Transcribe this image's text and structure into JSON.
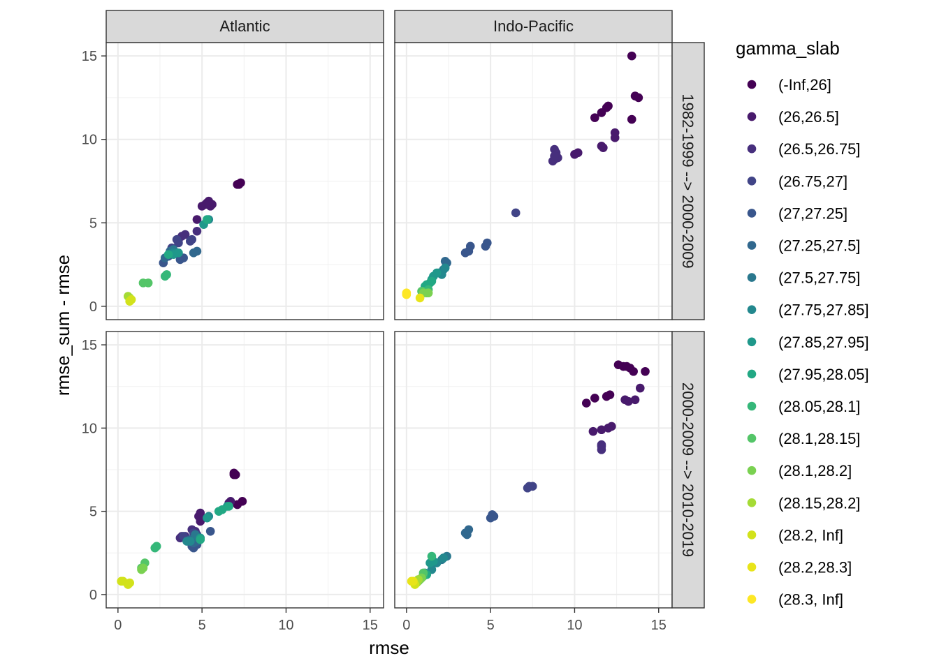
{
  "chart_data": {
    "type": "scatter",
    "xlabel": "rmse",
    "ylabel": "rmse_sum - rmse",
    "xlim": [
      -0.7,
      15.8
    ],
    "ylim": [
      -0.8,
      15.8
    ],
    "x_ticks": [
      "0",
      "5",
      "10",
      "15"
    ],
    "y_ticks": [
      "0",
      "5",
      "10",
      "15"
    ],
    "grid": true,
    "legend_placement": "right",
    "column_facets": [
      "Atlantic",
      "Indo-Pacific"
    ],
    "row_facets": [
      "1982-1999 --> 2000-2009",
      "2000-2009 --> 2010-2019"
    ],
    "legend": {
      "title": "gamma_slab",
      "entries": [
        {
          "label": "(-Inf,26]",
          "color": "#440154"
        },
        {
          "label": "(26,26.5]",
          "color": "#481a6c"
        },
        {
          "label": "(26.5,26.75]",
          "color": "#472f7d"
        },
        {
          "label": "(26.75,27]",
          "color": "#414487"
        },
        {
          "label": "(27,27.25]",
          "color": "#39568c"
        },
        {
          "label": "(27.25,27.5]",
          "color": "#31688e"
        },
        {
          "label": "(27.5,27.75]",
          "color": "#2a788e"
        },
        {
          "label": "(27.75,27.85]",
          "color": "#23888e"
        },
        {
          "label": "(27.85,27.95]",
          "color": "#1f988b"
        },
        {
          "label": "(27.95,28.05]",
          "color": "#22a884"
        },
        {
          "label": "(28.05,28.1]",
          "color": "#35b779"
        },
        {
          "label": "(28.1,28.15]",
          "color": "#54c568"
        },
        {
          "label": "(28.1,28.2]",
          "color": "#7ad151"
        },
        {
          "label": "(28.15,28.2]",
          "color": "#a5db36"
        },
        {
          "label": "(28.2, Inf]",
          "color": "#d2e21b"
        },
        {
          "label": "(28.2,28.3]",
          "color": "#e8e419"
        },
        {
          "label": "(28.3, Inf]",
          "color": "#fde725"
        }
      ]
    },
    "panels": [
      {
        "row": 0,
        "col": 0,
        "points": [
          [
            7.2,
            7.3,
            0
          ],
          [
            7.3,
            7.4,
            0
          ],
          [
            7.1,
            7.3,
            0
          ],
          [
            5.4,
            6.3,
            1
          ],
          [
            5.2,
            6.1,
            1
          ],
          [
            5.5,
            6.0,
            1
          ],
          [
            5.0,
            6.0,
            1
          ],
          [
            5.3,
            6.2,
            1
          ],
          [
            5.6,
            6.1,
            1
          ],
          [
            4.7,
            5.2,
            1
          ],
          [
            4.0,
            4.3,
            2
          ],
          [
            4.7,
            4.5,
            2
          ],
          [
            3.6,
            4.0,
            2
          ],
          [
            3.8,
            4.2,
            2
          ],
          [
            3.5,
            4.0,
            3
          ],
          [
            3.2,
            3.5,
            3
          ],
          [
            3.6,
            3.8,
            3
          ],
          [
            4.4,
            4.0,
            3
          ],
          [
            4.3,
            3.9,
            3
          ],
          [
            3.7,
            2.8,
            4
          ],
          [
            3.9,
            2.9,
            4
          ],
          [
            2.7,
            2.6,
            4
          ],
          [
            3.0,
            3.0,
            4
          ],
          [
            2.8,
            2.9,
            5
          ],
          [
            3.1,
            3.3,
            5
          ],
          [
            4.7,
            3.3,
            5
          ],
          [
            4.5,
            3.2,
            5
          ],
          [
            3.3,
            3.4,
            6
          ],
          [
            5.4,
            5.2,
            7
          ],
          [
            3.3,
            3.2,
            7
          ],
          [
            5.1,
            4.9,
            8
          ],
          [
            3.3,
            3.1,
            8
          ],
          [
            3.6,
            3.2,
            8
          ],
          [
            5.3,
            5.2,
            9
          ],
          [
            3.0,
            3.1,
            9
          ],
          [
            2.8,
            1.8,
            10
          ],
          [
            2.9,
            1.9,
            10
          ],
          [
            1.5,
            1.4,
            11
          ],
          [
            1.8,
            1.4,
            11
          ],
          [
            0.6,
            0.6,
            13
          ],
          [
            0.7,
            0.5,
            13
          ],
          [
            0.8,
            0.4,
            14
          ],
          [
            0.7,
            0.3,
            14
          ]
        ]
      },
      {
        "row": 0,
        "col": 1,
        "points": [
          [
            13.4,
            15.0,
            0
          ],
          [
            13.6,
            12.6,
            0
          ],
          [
            13.8,
            12.5,
            0
          ],
          [
            12.0,
            12.0,
            0
          ],
          [
            11.9,
            11.9,
            0
          ],
          [
            11.6,
            11.6,
            0
          ],
          [
            11.2,
            11.3,
            0
          ],
          [
            13.4,
            11.2,
            0
          ],
          [
            12.4,
            10.4,
            1
          ],
          [
            12.4,
            10.1,
            1
          ],
          [
            11.6,
            9.6,
            1
          ],
          [
            11.7,
            9.5,
            1
          ],
          [
            10.2,
            9.2,
            1
          ],
          [
            10.0,
            9.1,
            1
          ],
          [
            8.8,
            9.4,
            2
          ],
          [
            8.9,
            9.2,
            2
          ],
          [
            9.0,
            8.9,
            2
          ],
          [
            8.8,
            8.8,
            2
          ],
          [
            8.7,
            8.7,
            2
          ],
          [
            8.8,
            9.0,
            2
          ],
          [
            6.5,
            5.6,
            3
          ],
          [
            4.8,
            3.8,
            4
          ],
          [
            4.7,
            3.6,
            4
          ],
          [
            3.8,
            3.6,
            4
          ],
          [
            3.5,
            3.2,
            4
          ],
          [
            3.7,
            3.3,
            4
          ],
          [
            2.4,
            2.6,
            5
          ],
          [
            2.3,
            2.7,
            5
          ],
          [
            2.2,
            2.2,
            6
          ],
          [
            2.0,
            2.0,
            6
          ],
          [
            2.3,
            2.3,
            7
          ],
          [
            1.9,
            2.0,
            7
          ],
          [
            2.1,
            1.9,
            7
          ],
          [
            1.8,
            2.0,
            8
          ],
          [
            1.5,
            1.6,
            8
          ],
          [
            1.6,
            1.8,
            8
          ],
          [
            1.4,
            1.4,
            9
          ],
          [
            1.2,
            1.3,
            9
          ],
          [
            1.5,
            1.5,
            9
          ],
          [
            1.1,
            1.2,
            9
          ],
          [
            1.0,
            0.9,
            10
          ],
          [
            1.3,
            1.0,
            10
          ],
          [
            0.9,
            0.9,
            11
          ],
          [
            1.2,
            0.8,
            11
          ],
          [
            1.0,
            0.8,
            12
          ],
          [
            1.3,
            0.8,
            12
          ],
          [
            0.8,
            0.5,
            15
          ],
          [
            0.0,
            0.8,
            16
          ],
          [
            0.0,
            0.7,
            16
          ]
        ]
      },
      {
        "row": 1,
        "col": 0,
        "points": [
          [
            6.9,
            7.3,
            0
          ],
          [
            6.9,
            7.2,
            0
          ],
          [
            7.0,
            7.2,
            0
          ],
          [
            7.4,
            5.6,
            0
          ],
          [
            7.1,
            5.4,
            0
          ],
          [
            6.7,
            5.6,
            1
          ],
          [
            6.6,
            5.5,
            1
          ],
          [
            4.9,
            4.9,
            1
          ],
          [
            4.8,
            4.7,
            1
          ],
          [
            4.9,
            4.4,
            1
          ],
          [
            4.6,
            3.8,
            2
          ],
          [
            4.4,
            3.9,
            2
          ],
          [
            4.0,
            3.5,
            2
          ],
          [
            3.7,
            3.4,
            2
          ],
          [
            3.8,
            3.5,
            2
          ],
          [
            4.6,
            3.5,
            3
          ],
          [
            4.5,
            3.7,
            3
          ],
          [
            4.7,
            3.6,
            3
          ],
          [
            3.9,
            3.5,
            3
          ],
          [
            4.5,
            2.8,
            4
          ],
          [
            4.7,
            3.0,
            4
          ],
          [
            4.4,
            2.9,
            4
          ],
          [
            5.5,
            3.8,
            4
          ],
          [
            4.5,
            3.1,
            5
          ],
          [
            4.3,
            3.3,
            5
          ],
          [
            4.7,
            3.2,
            5
          ],
          [
            4.8,
            3.4,
            6
          ],
          [
            4.6,
            3.6,
            6
          ],
          [
            5.4,
            4.7,
            7
          ],
          [
            4.3,
            3.2,
            7
          ],
          [
            4.1,
            3.2,
            7
          ],
          [
            5.3,
            4.6,
            8
          ],
          [
            6.5,
            5.3,
            8
          ],
          [
            4.9,
            3.4,
            8
          ],
          [
            6.2,
            5.1,
            9
          ],
          [
            6.6,
            5.3,
            9
          ],
          [
            6.0,
            5.0,
            9
          ],
          [
            4.9,
            3.3,
            9
          ],
          [
            2.3,
            2.9,
            10
          ],
          [
            2.2,
            2.8,
            10
          ],
          [
            1.6,
            1.9,
            11
          ],
          [
            1.4,
            1.6,
            11
          ],
          [
            1.4,
            1.5,
            12
          ],
          [
            1.5,
            1.6,
            12
          ],
          [
            0.3,
            0.8,
            14
          ],
          [
            0.7,
            0.7,
            14
          ],
          [
            0.6,
            0.6,
            14
          ],
          [
            0.2,
            0.8,
            14
          ]
        ]
      },
      {
        "row": 1,
        "col": 1,
        "points": [
          [
            12.6,
            13.8,
            0
          ],
          [
            12.9,
            13.7,
            0
          ],
          [
            13.1,
            13.7,
            0
          ],
          [
            13.3,
            13.6,
            0
          ],
          [
            13.5,
            13.4,
            0
          ],
          [
            14.2,
            13.4,
            0
          ],
          [
            10.7,
            11.5,
            0
          ],
          [
            11.2,
            11.8,
            0
          ],
          [
            11.9,
            11.9,
            0
          ],
          [
            12.1,
            12.0,
            0
          ],
          [
            13.9,
            12.4,
            1
          ],
          [
            13.6,
            11.7,
            1
          ],
          [
            13.2,
            11.6,
            1
          ],
          [
            13.0,
            11.7,
            1
          ],
          [
            12.2,
            10.1,
            1
          ],
          [
            12.0,
            10.0,
            1
          ],
          [
            11.6,
            9.9,
            1
          ],
          [
            11.1,
            9.8,
            1
          ],
          [
            11.6,
            9.0,
            2
          ],
          [
            11.6,
            8.7,
            2
          ],
          [
            11.6,
            8.9,
            2
          ],
          [
            7.5,
            6.5,
            3
          ],
          [
            7.2,
            6.4,
            3
          ],
          [
            7.3,
            6.5,
            3
          ],
          [
            5.1,
            4.8,
            4
          ],
          [
            5.0,
            4.6,
            4
          ],
          [
            5.2,
            4.7,
            4
          ],
          [
            3.6,
            3.6,
            5
          ],
          [
            3.7,
            3.9,
            5
          ],
          [
            3.5,
            3.7,
            5
          ],
          [
            2.4,
            2.3,
            6
          ],
          [
            1.2,
            1.2,
            6
          ],
          [
            2.1,
            2.1,
            6
          ],
          [
            2.2,
            2.2,
            7
          ],
          [
            1.8,
            1.9,
            7
          ],
          [
            1.5,
            1.5,
            7
          ],
          [
            1.1,
            1.3,
            7
          ],
          [
            1.4,
            1.9,
            8
          ],
          [
            1.6,
            2.0,
            8
          ],
          [
            0.9,
            1.0,
            9
          ],
          [
            1.2,
            1.2,
            9
          ],
          [
            1.5,
            2.3,
            10
          ],
          [
            1.0,
            1.1,
            10
          ],
          [
            1.0,
            1.3,
            11
          ],
          [
            0.7,
            0.8,
            11
          ],
          [
            0.8,
            0.9,
            12
          ],
          [
            0.9,
            1.0,
            12
          ],
          [
            0.6,
            0.7,
            13
          ],
          [
            0.7,
            0.9,
            13
          ],
          [
            0.5,
            0.6,
            14
          ],
          [
            0.3,
            0.8,
            15
          ],
          [
            0.4,
            0.8,
            15
          ]
        ]
      }
    ]
  }
}
